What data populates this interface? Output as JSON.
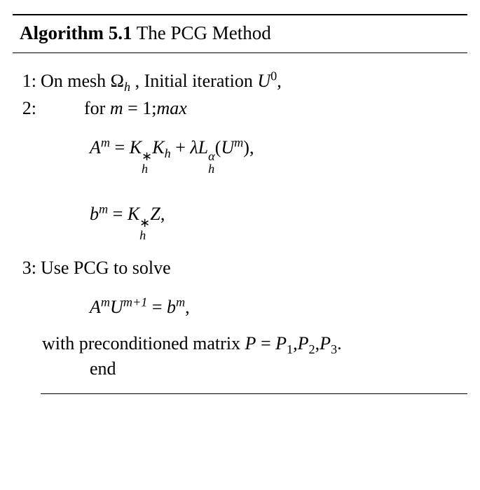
{
  "colors": {
    "text": "#000000",
    "background": "#ffffff",
    "rule": "#000000"
  },
  "fonts": {
    "body_family": "Times New Roman",
    "title_size_pt": 27,
    "body_size_pt": 26
  },
  "algorithm": {
    "label": "Algorithm 5.1",
    "title": " The PCG Method",
    "steps": {
      "s1": {
        "num": "1:",
        "prefix": "On mesh ",
        "mesh_sym": "Ω",
        "mesh_sub": "h",
        "mid": " , Initial iteration ",
        "U": "U",
        "U_sup": "0",
        "comma": ","
      },
      "s2": {
        "num": "2:",
        "for_kw": "for ",
        "m": "m",
        "eq": " = ",
        "one": "1",
        "semi": ";",
        "max": "max"
      },
      "eqA": {
        "A": "A",
        "A_sup": "m",
        "eq": " = ",
        "K": "K",
        "K1_sup": "∗",
        "K1_sub": "h",
        "K2": "K",
        "K2_sub": "h",
        "plus": " + ",
        "lambda": "λ",
        "L": "L",
        "L_sup": "α",
        "L_sub": "h",
        "lpar": "(",
        "U": "U",
        "U_sup": "m",
        "rpar": ")",
        "comma": ","
      },
      "eqb": {
        "b": "b",
        "b_sup": "m",
        "eq": " = ",
        "K": "K",
        "K_sup": "∗",
        "K_sub": "h",
        "Z": "Z",
        "comma": ","
      },
      "s3": {
        "num": "3:",
        "text": "Use PCG to solve"
      },
      "eqSolve": {
        "A": "A",
        "A_sup": "m",
        "U": "U",
        "U_sup": "m+1",
        "eq": " = ",
        "b": "b",
        "b_sup": "m",
        "comma": ","
      },
      "with": {
        "prefix": "with preconditioned matrix ",
        "P": "P",
        "eq": " = ",
        "P1": "P",
        "s1": "1",
        "c1": ",",
        "P2": "P",
        "s2": "2",
        "c2": ",",
        "P3": "P",
        "s3": "3",
        "dot": "."
      },
      "end": "end"
    }
  }
}
